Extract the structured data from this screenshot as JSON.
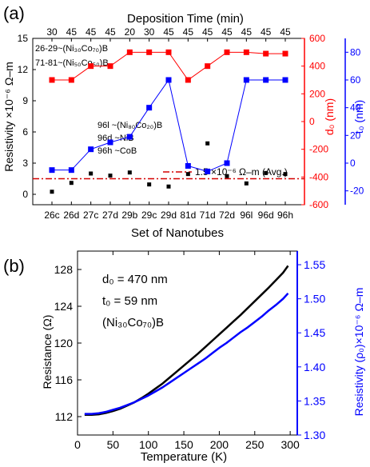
{
  "panel_a": {
    "label": "(a)",
    "top_axis_title": "Deposition Time (min)",
    "top_ticks": [
      "30",
      "45",
      "45",
      "45",
      "20",
      "30",
      "45",
      "45",
      "45",
      "45",
      "45",
      "45",
      "45"
    ],
    "xlabel": "Set of Nanotubes",
    "ylabel_left": "Resistivity ×10⁻⁶ Ω–m",
    "ylabel_d0": "d₀ (nm)",
    "ylabel_t0": "t₀ (nm)",
    "legend_block": [
      "26-29~(Ni₃₀Co₇₀)B",
      "71-81~(Ni₅₀Co₅₀)B"
    ],
    "legend_block2": [
      "96l ~(Ni₈₀Co₂₀)B",
      "96d ~NiB",
      "96h ~CoB"
    ],
    "avg_label": "1.5 ×10⁻⁶ Ω–m (Avg.)",
    "colors": {
      "resistivity": "#000000",
      "d0": "#ff0000",
      "t0": "#0000ff",
      "avg": "#d40000"
    }
  },
  "panel_b": {
    "label": "(b)",
    "xlabel": "Temperature (K)",
    "ylabel_left": "Resistance (Ω)",
    "ylabel_right": "Resistivity (ρ₀)×10⁻⁶ Ω–m",
    "annotations": [
      "d₀ = 470 nm",
      "t₀ = 59 nm",
      "(Ni₃₀Co₇₀)B"
    ],
    "colors": {
      "resistance": "#000000",
      "resistivity": "#0000ff"
    }
  },
  "chart_data": [
    {
      "type": "scatter",
      "title": "",
      "categories": [
        "26c",
        "26d",
        "27c",
        "27d",
        "29b",
        "29c",
        "29d",
        "81d",
        "71d",
        "72d",
        "96l",
        "96d",
        "96h"
      ],
      "xlabel": "Set of Nanotubes",
      "series": [
        {
          "name": "Resistivity",
          "axis": "left",
          "marker": "square",
          "line": false,
          "values": [
            0.25,
            1.1,
            2.0,
            1.8,
            2.1,
            0.95,
            0.75,
            1.95,
            4.9,
            1.75,
            1.05,
            2.05,
            1.95
          ]
        },
        {
          "name": "d0",
          "axis": "right1",
          "marker": "square",
          "line": true,
          "values": [
            300,
            300,
            400,
            400,
            500,
            500,
            500,
            300,
            400,
            500,
            500,
            490,
            490
          ]
        },
        {
          "name": "t0",
          "axis": "right2",
          "marker": "square",
          "line": true,
          "values": [
            -5,
            -5,
            10,
            15,
            19,
            40,
            60,
            -2,
            -6,
            0,
            60,
            60,
            60
          ]
        },
        {
          "name": "1.5 ×10⁻⁶ Ω–m (Avg.)",
          "axis": "left",
          "style": "dash-dot",
          "constant": 1.5
        }
      ],
      "axes": {
        "left": {
          "label": "Resistivity ×10⁻⁶ Ω–m",
          "ylim": [
            -1,
            15
          ],
          "ticks": [
            0,
            3,
            6,
            9,
            12,
            15
          ]
        },
        "right1": {
          "label": "d₀ (nm)",
          "ylim": [
            -600,
            600
          ],
          "ticks": [
            -600,
            -400,
            -200,
            0,
            200,
            400,
            600
          ]
        },
        "right2": {
          "label": "t₀ (nm)",
          "ylim": [
            -30,
            90
          ],
          "ticks": [
            -20,
            0,
            20,
            40,
            60,
            80
          ]
        },
        "top": {
          "label": "Deposition Time (min)",
          "ticks": [
            "30",
            "45",
            "45",
            "45",
            "20",
            "30",
            "45",
            "45",
            "45",
            "45",
            "45",
            "45",
            "45"
          ]
        }
      },
      "grid": false
    },
    {
      "type": "line",
      "title": "",
      "xlabel": "Temperature (K)",
      "xlim": [
        0,
        310
      ],
      "x_ticks": [
        0,
        50,
        100,
        150,
        200,
        250,
        300
      ],
      "series": [
        {
          "name": "Resistance",
          "axis": "left",
          "x": [
            10,
            20,
            30,
            40,
            50,
            60,
            70,
            80,
            90,
            100,
            110,
            120,
            130,
            140,
            150,
            160,
            170,
            180,
            190,
            200,
            210,
            220,
            230,
            240,
            250,
            260,
            270,
            280,
            290,
            297
          ],
          "values": [
            112.2,
            112.2,
            112.25,
            112.4,
            112.6,
            112.85,
            113.2,
            113.55,
            114.0,
            114.5,
            115.05,
            115.6,
            116.25,
            116.9,
            117.55,
            118.2,
            118.85,
            119.55,
            120.25,
            120.95,
            121.65,
            122.35,
            123.05,
            123.8,
            124.55,
            125.3,
            126.05,
            126.85,
            127.65,
            128.4
          ]
        },
        {
          "name": "Resistivity",
          "axis": "right",
          "x": [
            10,
            20,
            30,
            40,
            50,
            60,
            70,
            80,
            90,
            100,
            110,
            120,
            130,
            140,
            150,
            160,
            170,
            180,
            190,
            200,
            210,
            220,
            230,
            240,
            250,
            260,
            270,
            280,
            290,
            297
          ],
          "values": [
            1.331,
            1.331,
            1.332,
            1.334,
            1.337,
            1.34,
            1.344,
            1.348,
            1.353,
            1.358,
            1.364,
            1.37,
            1.377,
            1.384,
            1.391,
            1.398,
            1.405,
            1.412,
            1.42,
            1.428,
            1.435,
            1.443,
            1.451,
            1.458,
            1.466,
            1.474,
            1.483,
            1.491,
            1.5,
            1.508
          ]
        }
      ],
      "axes": {
        "left": {
          "label": "Resistance (Ω)",
          "ylim": [
            110,
            130
          ],
          "ticks": [
            112,
            116,
            120,
            124,
            128
          ]
        },
        "right": {
          "label": "Resistivity (ρ₀)×10⁻⁶ Ω–m",
          "ylim": [
            1.3,
            1.57
          ],
          "ticks": [
            "1.30",
            "1.35",
            "1.40",
            "1.45",
            "1.50",
            "1.55"
          ]
        }
      },
      "grid": false
    }
  ]
}
